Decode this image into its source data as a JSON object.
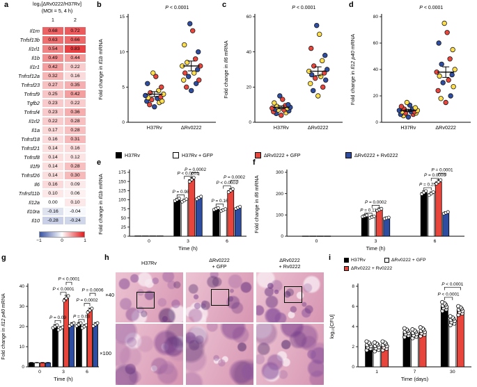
{
  "colors": {
    "red": "#e8463c",
    "blue": "#2f4da0",
    "yellow": "#ffdf4d",
    "black": "#000000",
    "white": "#ffffff",
    "heat_positive": "#e31a1c",
    "heat_negative": "#3a53a4"
  },
  "panels": {
    "a": {
      "letter": "a",
      "title": "log₂[ΔRv0222/H37Rv]",
      "subtitle": "(MOI = 5, 4 h)",
      "col_headers": [
        "1",
        "2"
      ],
      "rows": [
        {
          "gene": "Il1rn",
          "v": [
            0.68,
            0.72
          ]
        },
        {
          "gene": "Tnfsf13b",
          "v": [
            0.63,
            0.66
          ]
        },
        {
          "gene": "Il1rl1",
          "v": [
            0.54,
            0.83
          ]
        },
        {
          "gene": "Il1b",
          "v": [
            0.49,
            0.44
          ]
        },
        {
          "gene": "Il1r1",
          "v": [
            0.42,
            0.22
          ]
        },
        {
          "gene": "Tnfrsf12a",
          "v": [
            0.32,
            0.16
          ]
        },
        {
          "gene": "Tnfrsf23",
          "v": [
            0.27,
            0.35
          ]
        },
        {
          "gene": "Tnfrsf9",
          "v": [
            0.25,
            0.42
          ]
        },
        {
          "gene": "Tgfb2",
          "v": [
            0.23,
            0.22
          ]
        },
        {
          "gene": "Tnfrsf4",
          "v": [
            0.23,
            0.36
          ]
        },
        {
          "gene": "Il1rl2",
          "v": [
            0.22,
            0.28
          ]
        },
        {
          "gene": "Il1a",
          "v": [
            0.17,
            0.28
          ]
        },
        {
          "gene": "Tnfrsf18",
          "v": [
            0.16,
            0.31
          ]
        },
        {
          "gene": "Tnfrsf21",
          "v": [
            0.14,
            0.16
          ]
        },
        {
          "gene": "Tnfrsf8",
          "v": [
            0.14,
            0.12
          ]
        },
        {
          "gene": "Il1f9",
          "v": [
            0.14,
            0.28
          ]
        },
        {
          "gene": "Tnfrsf26",
          "v": [
            0.14,
            0.3
          ]
        },
        {
          "gene": "Il6",
          "v": [
            0.16,
            0.09
          ]
        },
        {
          "gene": "Tnfrsf11b",
          "v": [
            0.1,
            0.06
          ]
        },
        {
          "gene": "Il12a",
          "v": [
            0.0,
            0.1
          ]
        },
        {
          "gene": "Il10ra",
          "v": [
            -0.16,
            -0.04
          ]
        },
        {
          "gene": "Il10",
          "v": [
            -0.28,
            -0.24
          ]
        }
      ],
      "scale_labels": [
        "−1",
        "0",
        "1"
      ]
    },
    "b": {
      "letter": "b",
      "p_label": "P < 0.0001",
      "ylabel": {
        "pre": "Fold change in ",
        "gene": "Il1b",
        "post": " mRNA"
      },
      "ymax": 15,
      "yticks": [
        0,
        5,
        10,
        15
      ],
      "groups": [
        "H37Rv",
        "ΔRv0222"
      ],
      "points": [
        {
          "values": [
            2.2,
            2.5,
            2.8,
            3,
            3,
            3.2,
            3.4,
            3.5,
            3.6,
            3.8,
            4,
            4.2,
            4.5,
            5,
            5.5,
            6.5,
            7
          ],
          "colors": [
            "b",
            "r",
            "y",
            "b",
            "y",
            "r",
            "b",
            "y",
            "r",
            "b",
            "y",
            "r",
            "y",
            "r",
            "b",
            "r",
            "y"
          ]
        },
        {
          "values": [
            4.5,
            5,
            5.5,
            6,
            6,
            6.5,
            7,
            7,
            7.5,
            8,
            8,
            8.5,
            9,
            10,
            11,
            13,
            14
          ],
          "colors": [
            "b",
            "r",
            "b",
            "y",
            "r",
            "b",
            "y",
            "r",
            "b",
            "y",
            "r",
            "y",
            "r",
            "b",
            "y",
            "r",
            "b"
          ]
        }
      ],
      "means": [
        4.0,
        8.0
      ],
      "sems": [
        0.35,
        0.7
      ]
    },
    "c": {
      "letter": "c",
      "p_label": "P < 0.0001",
      "ylabel": {
        "pre": "Fold change in ",
        "gene": "Il6",
        "post": " mRNA"
      },
      "ymax": 60,
      "yticks": [
        0,
        20,
        40,
        60
      ],
      "groups": [
        "H37Rv",
        "ΔRv0222"
      ],
      "points": [
        {
          "values": [
            4,
            5,
            5.5,
            6,
            6.5,
            7,
            7,
            7.5,
            8,
            8,
            8.5,
            9,
            9.5,
            10,
            11,
            13,
            15
          ],
          "colors": [
            "r",
            "b",
            "y",
            "r",
            "b",
            "y",
            "r",
            "b",
            "y",
            "r",
            "b",
            "y",
            "r",
            "b",
            "y",
            "r",
            "b"
          ]
        },
        {
          "values": [
            15,
            18,
            20,
            22,
            24,
            25,
            26,
            27,
            28,
            29,
            30,
            32,
            35,
            38,
            42,
            50,
            55
          ],
          "colors": [
            "y",
            "b",
            "r",
            "y",
            "b",
            "r",
            "y",
            "b",
            "r",
            "y",
            "b",
            "r",
            "y",
            "b",
            "r",
            "y",
            "b"
          ]
        }
      ],
      "means": [
        8.5,
        29
      ],
      "sems": [
        0.8,
        2.5
      ]
    },
    "d": {
      "letter": "d",
      "p_label": "P < 0.0001",
      "ylabel": {
        "pre": "Fold change in ",
        "gene": "Il12 p40",
        "post": " mRNA"
      },
      "ymax": 80,
      "yticks": [
        0,
        20,
        40,
        60,
        80
      ],
      "groups": [
        "H37Rv",
        "ΔRv0222"
      ],
      "points": [
        {
          "values": [
            4,
            5,
            6,
            6,
            7,
            7,
            8,
            8,
            8,
            9,
            9,
            10,
            10,
            11,
            12,
            13,
            15
          ],
          "colors": [
            "b",
            "y",
            "r",
            "b",
            "y",
            "r",
            "b",
            "y",
            "r",
            "b",
            "y",
            "r",
            "b",
            "y",
            "r",
            "b",
            "y"
          ]
        },
        {
          "values": [
            15,
            18,
            20,
            24,
            27,
            30,
            32,
            35,
            36,
            38,
            40,
            44,
            48,
            55,
            60,
            68,
            75
          ],
          "colors": [
            "r",
            "y",
            "b",
            "r",
            "y",
            "b",
            "r",
            "y",
            "b",
            "r",
            "y",
            "b",
            "r",
            "y",
            "b",
            "r",
            "y"
          ]
        }
      ],
      "means": [
        9,
        38
      ],
      "sems": [
        0.9,
        4
      ]
    },
    "legend": {
      "items": [
        {
          "label": "H37Rv",
          "swatch": "black"
        },
        {
          "label": "H37Rv + GFP",
          "swatch": "white"
        },
        {
          "label": "ΔRv0222 + GFP",
          "swatch": "red"
        },
        {
          "label": "ΔRv0222 + Rv0222",
          "swatch": "blue"
        }
      ]
    },
    "e": {
      "letter": "e",
      "ylabel": {
        "pre": "Fold change in ",
        "gene": "Il1b",
        "post": " mRNA"
      },
      "xlabel": "Time (h)",
      "ymax": 175,
      "yticks": [
        0,
        25,
        50,
        75,
        100,
        125,
        150,
        175
      ],
      "groups": [
        "0",
        "3",
        "6"
      ],
      "series": [
        "H37Rv",
        "H37Rv + GFP",
        "ΔRv0222 + GFP",
        "ΔRv0222 + Rv0222"
      ],
      "swatches": [
        "black",
        "white",
        "red",
        "blue"
      ],
      "values": [
        [
          1,
          1,
          1,
          1
        ],
        [
          100,
          98,
          155,
          105
        ],
        [
          75,
          72,
          125,
          78
        ]
      ],
      "errors": [
        [
          0.1,
          0.1,
          0.1,
          0.1
        ],
        [
          4,
          4,
          6,
          4
        ],
        [
          3,
          3,
          5,
          3
        ]
      ],
      "annotations": [
        {
          "g": 1,
          "i": 0,
          "j": 1,
          "y": 113,
          "label": "P = 0.98"
        },
        {
          "g": 1,
          "i": 1,
          "j": 2,
          "y": 164,
          "label": "P < 0.0001"
        },
        {
          "g": 1,
          "i": 2,
          "j": 3,
          "y": 174,
          "label": "P = 0.0002"
        },
        {
          "g": 2,
          "i": 0,
          "j": 1,
          "y": 88,
          "label": "P = 0.16"
        },
        {
          "g": 2,
          "i": 1,
          "j": 2,
          "y": 138,
          "label": "P < 0.0001"
        },
        {
          "g": 2,
          "i": 2,
          "j": 3,
          "y": 153,
          "label": "P = 0.0002"
        }
      ]
    },
    "f": {
      "letter": "f",
      "ylabel": {
        "pre": "Fold change in ",
        "gene": "Il6",
        "post": " mRNA"
      },
      "xlabel": "Time (h)",
      "ymax": 300,
      "yticks": [
        0,
        100,
        200,
        300
      ],
      "groups": [
        "0",
        "3",
        "6"
      ],
      "series": [
        "H37Rv",
        "H37Rv + GFP",
        "ΔRv0222 + GFP",
        "ΔRv0222 + Rv0222"
      ],
      "swatches": [
        "black",
        "white",
        "red",
        "blue"
      ],
      "values": [
        [
          1,
          1,
          1,
          1
        ],
        [
          95,
          90,
          125,
          85
        ],
        [
          205,
          200,
          255,
          110
        ]
      ],
      "errors": [
        [
          0.1,
          0.1,
          0.1,
          0.1
        ],
        [
          6,
          6,
          8,
          6
        ],
        [
          8,
          8,
          10,
          6
        ]
      ],
      "annotations": [
        {
          "g": 1,
          "i": 0,
          "j": 1,
          "y": 108,
          "label": "P = 0.11"
        },
        {
          "g": 1,
          "i": 1,
          "j": 2,
          "y": 145,
          "label": "P = 0.0002"
        },
        {
          "g": 2,
          "i": 0,
          "j": 1,
          "y": 228,
          "label": "P = 0.25"
        },
        {
          "g": 2,
          "i": 1,
          "j": 2,
          "y": 272,
          "label": "P = 0.0006"
        },
        {
          "g": 2,
          "i": 2,
          "j": 3,
          "y": 296,
          "label": "P = 0.0001"
        }
      ]
    },
    "g": {
      "letter": "g",
      "ylabel": {
        "pre": "Fold change in ",
        "gene": "Il12 p40",
        "post": " mRNA"
      },
      "xlabel": "Time (h)",
      "ymax": 40,
      "yticks": [
        0,
        10,
        20,
        30,
        40
      ],
      "groups": [
        "0",
        "3",
        "6"
      ],
      "series": [
        "H37Rv",
        "H37Rv + GFP",
        "ΔRv0222 + GFP",
        "ΔRv0222 + Rv0222"
      ],
      "swatches": [
        "black",
        "white",
        "red",
        "blue"
      ],
      "values": [
        [
          2,
          2,
          2,
          2
        ],
        [
          20,
          19,
          34,
          21
        ],
        [
          21,
          20,
          28,
          21
        ]
      ],
      "errors": [
        [
          0.2,
          0.2,
          0.2,
          0.2
        ],
        [
          1,
          1,
          1.5,
          1
        ],
        [
          1,
          1,
          1.2,
          1
        ]
      ],
      "annotations": [
        {
          "g": 1,
          "i": 0,
          "j": 1,
          "y": 23,
          "label": "P = 0.09"
        },
        {
          "g": 1,
          "i": 1,
          "j": 2,
          "y": 37,
          "label": "P < 0.0001"
        },
        {
          "g": 1,
          "i": 2,
          "j": 3,
          "y": 42,
          "label": "P < 0.0001"
        },
        {
          "g": 2,
          "i": 0,
          "j": 1,
          "y": 23.5,
          "label": "P = 0.03"
        },
        {
          "g": 2,
          "i": 1,
          "j": 2,
          "y": 31.5,
          "label": "P = 0.0002"
        },
        {
          "g": 2,
          "i": 2,
          "j": 3,
          "y": 36.5,
          "label": "P = 0.0006"
        }
      ]
    },
    "h": {
      "letter": "h",
      "columns": [
        [
          "H37Rv"
        ],
        [
          "ΔRv0222",
          "+ GFP"
        ],
        [
          "ΔRv0222",
          "+ Rv0222"
        ]
      ],
      "magnifications": [
        "×40",
        "×100"
      ]
    },
    "i": {
      "letter": "i",
      "legend": [
        {
          "label": "H37Rv",
          "swatch": "black"
        },
        {
          "label": "ΔRv0222 + GFP",
          "swatch": "white"
        },
        {
          "label": "ΔRv0222 + Rv0222",
          "swatch": "red"
        }
      ],
      "ylabel": "log₁₀[CFU]",
      "xlabel": "Time (days)",
      "ymax": 8,
      "yticks": [
        0,
        2,
        4,
        6,
        8
      ],
      "groups": [
        "1",
        "7",
        "30"
      ],
      "swatches": [
        "black",
        "white",
        "red"
      ],
      "values": [
        [
          2.1,
          2.0,
          2.1
        ],
        [
          3.4,
          3.3,
          3.5
        ],
        [
          6.0,
          4.6,
          5.6
        ]
      ],
      "errors": [
        [
          0.15,
          0.15,
          0.15
        ],
        [
          0.2,
          0.2,
          0.2
        ],
        [
          0.2,
          0.25,
          0.25
        ]
      ],
      "annotations": [
        {
          "g": 2,
          "i": 0,
          "j": 1,
          "y": 6.9,
          "label": "P < 0.0001"
        },
        {
          "g": 2,
          "i": 0,
          "j": 2,
          "y": 7.9,
          "label": "P < 0.0001"
        }
      ]
    }
  }
}
